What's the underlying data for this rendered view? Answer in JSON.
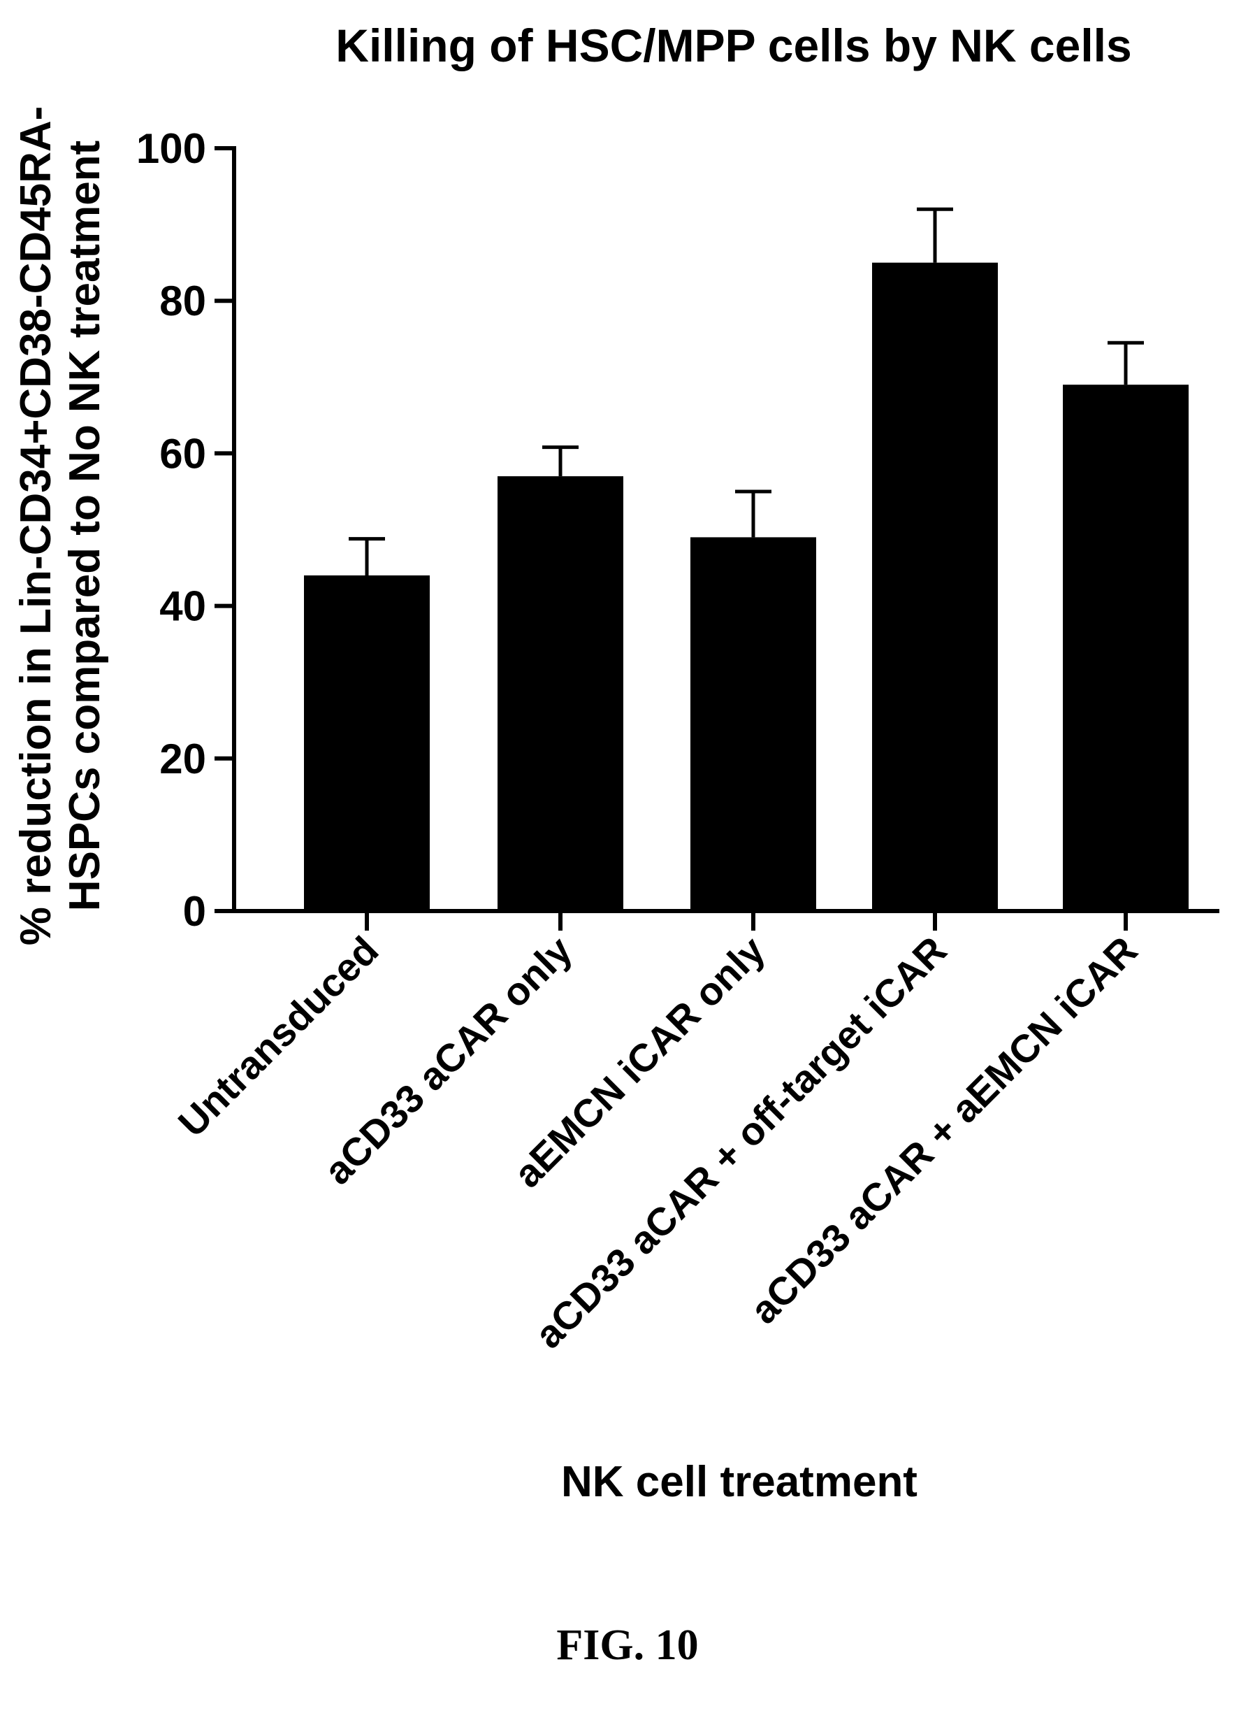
{
  "chart_data": {
    "type": "bar",
    "title": "Killing of HSC/MPP cells by NK cells",
    "xlabel": "NK cell treatment",
    "ylabel_lines": [
      "% reduction in Lin-CD34+CD38-CD45RA-",
      "HSPCs compared to No NK treatment"
    ],
    "ylim": [
      0,
      100
    ],
    "yticks": [
      0,
      20,
      40,
      60,
      80,
      100
    ],
    "grid": false,
    "legend": "none",
    "bar_color": "#000000",
    "categories": [
      "Untransduced",
      "aCD33 aCAR only",
      "aEMCN iCAR only",
      "aCD33 aCAR + off-target iCAR",
      "aCD33 aCAR + aEMCN iCAR"
    ],
    "values": [
      44,
      57,
      49,
      85,
      69
    ],
    "error_upper": [
      4.8,
      3.8,
      6,
      7,
      5.5
    ]
  },
  "figure_caption": "FIG. 10"
}
